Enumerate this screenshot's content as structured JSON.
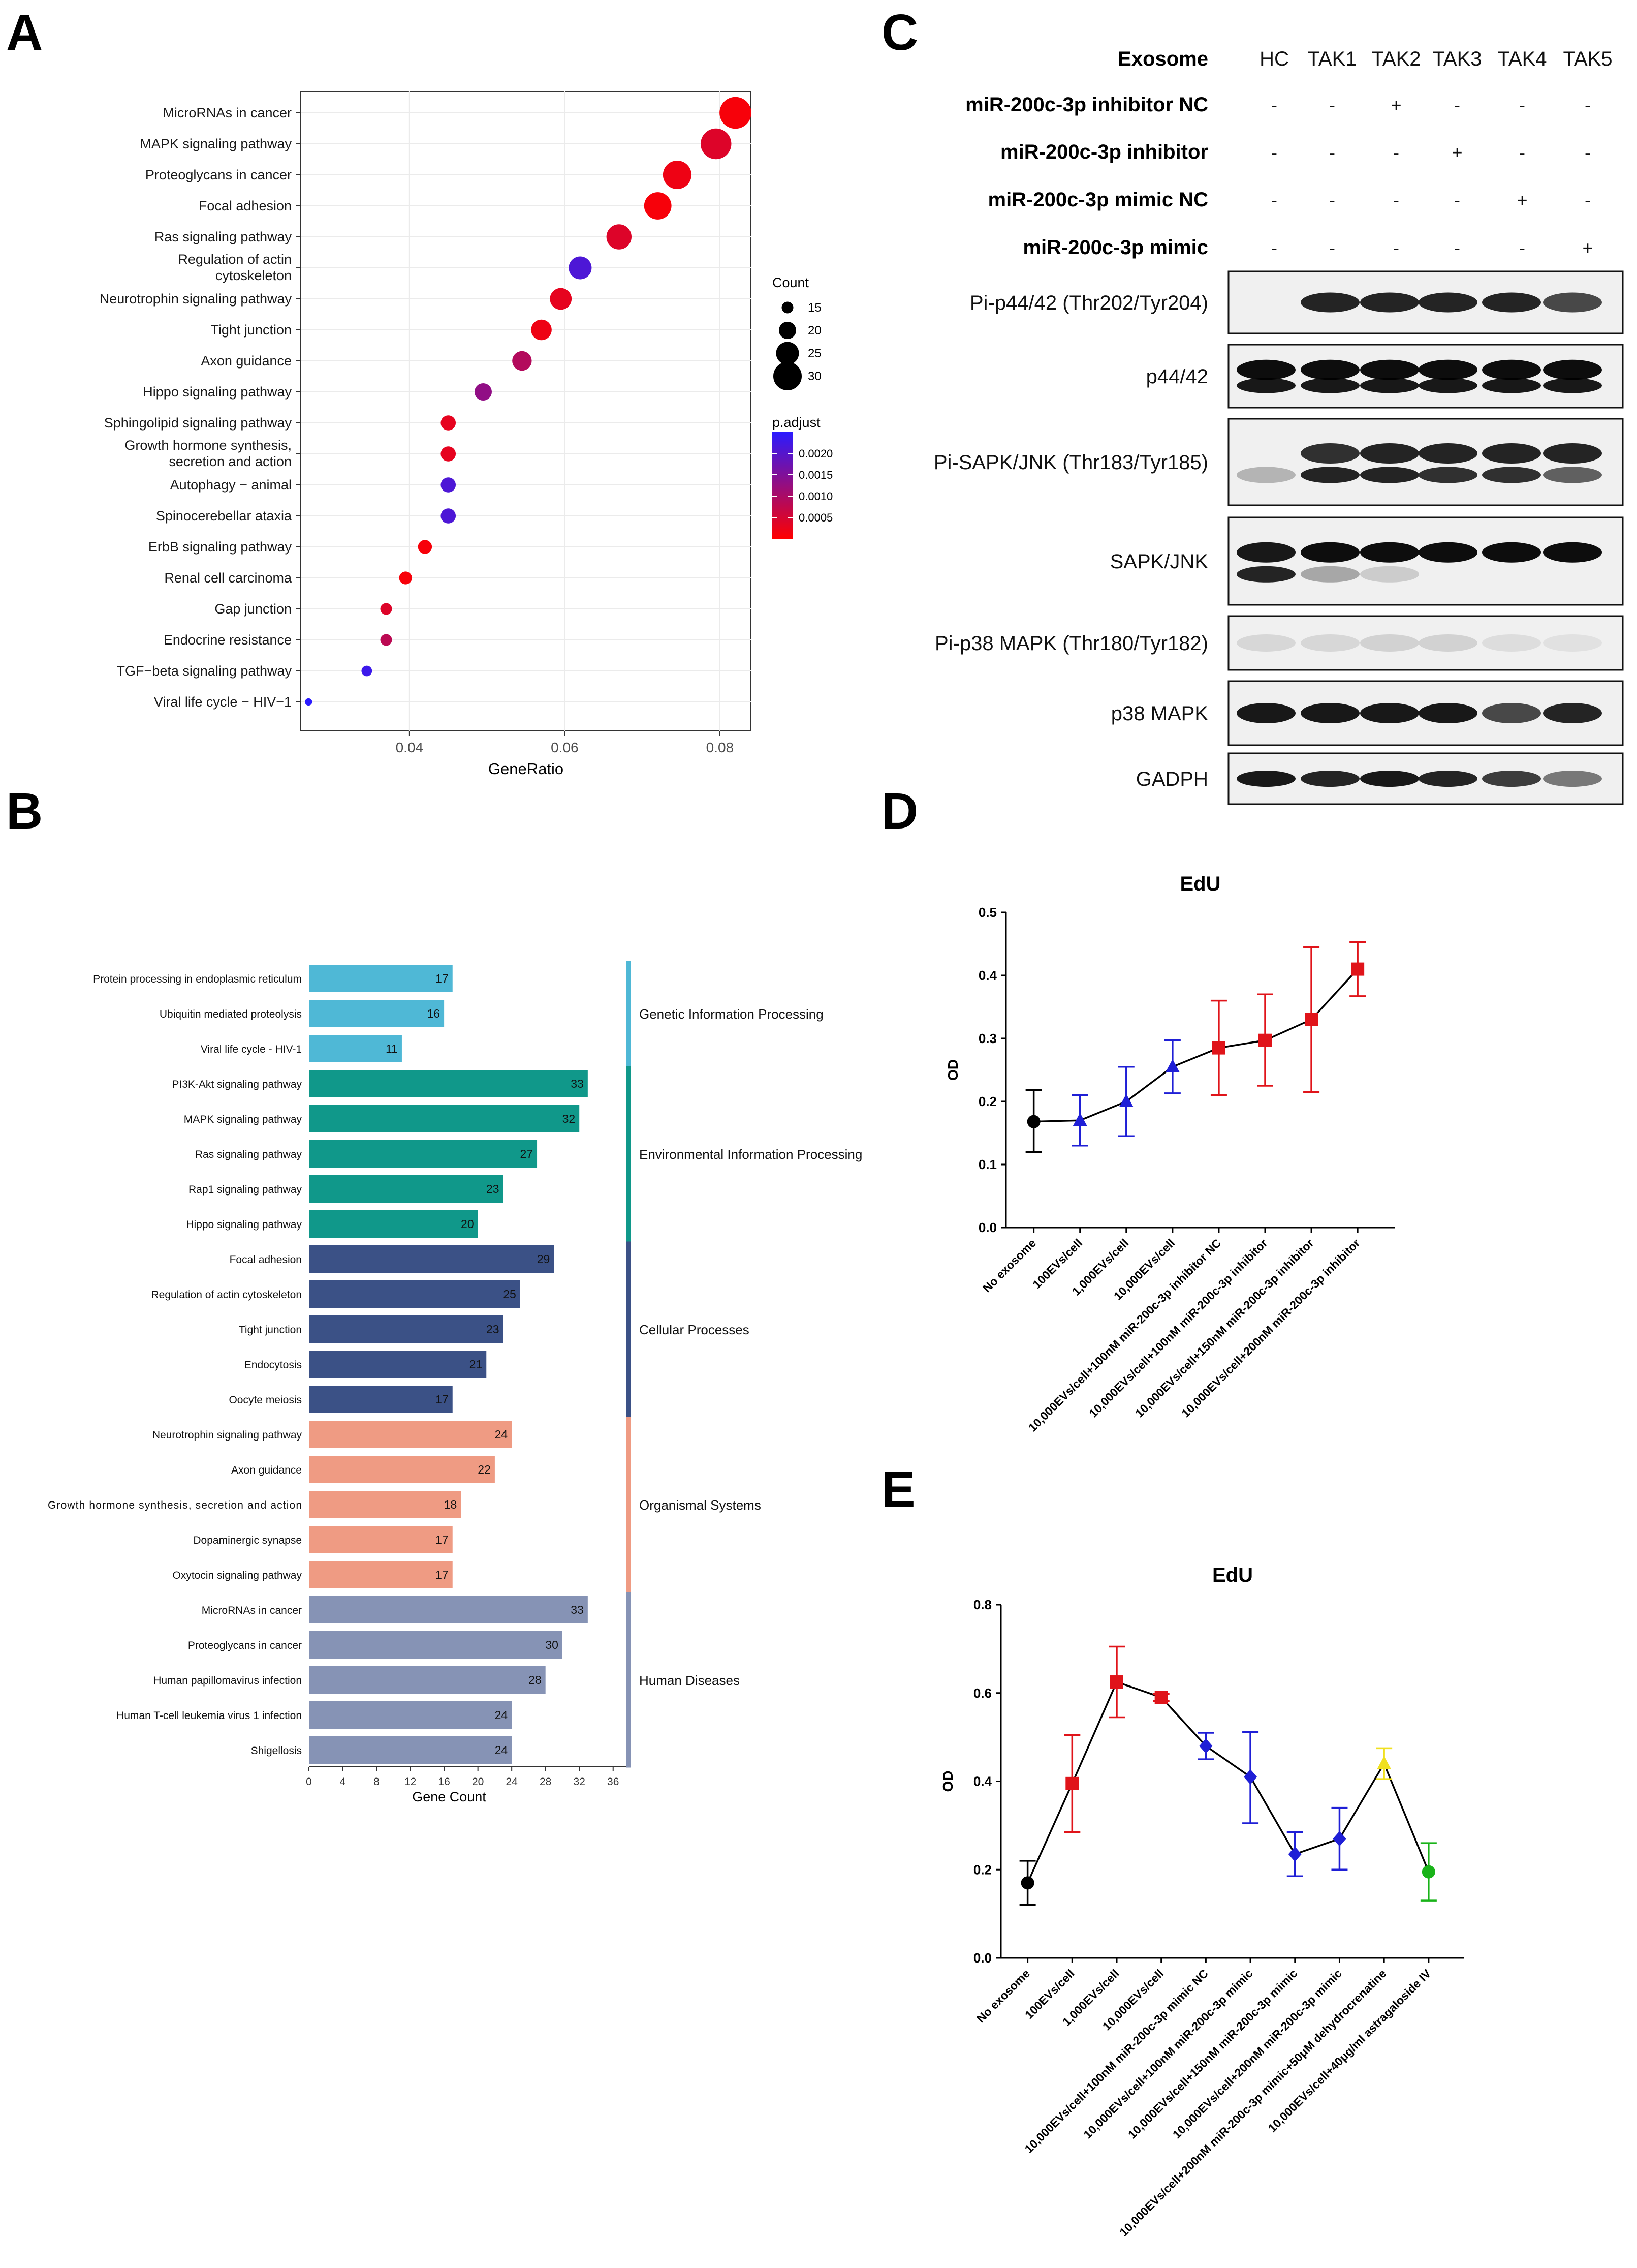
{
  "panel_labels": [
    "A",
    "B",
    "C",
    "D",
    "E"
  ],
  "colors": {
    "padj_low": "#ff0000",
    "padj_high": "#2b1bff",
    "genetic": "#4fb8d6",
    "environmental": "#10988a",
    "cellular": "#3b5186",
    "organismal": "#ef9b83",
    "human": "#8693b5",
    "black": "#000000",
    "blue": "#1f1fd6",
    "red": "#e0141a",
    "yellow": "#f0e020",
    "green": "#19b319"
  },
  "chart_data": [
    {
      "panel": "A",
      "type": "scatter",
      "title": "",
      "xlabel": "GeneRatio",
      "ylabel": "",
      "xlim": [
        0.026,
        0.084
      ],
      "xticks": [
        0.04,
        0.06,
        0.08
      ],
      "xtick_labels": [
        "0.04",
        "0.06",
        "0.08"
      ],
      "categories": [
        "MicroRNAs in cancer",
        "MAPK signaling pathway",
        "Proteoglycans in cancer",
        "Focal adhesion",
        "Ras signaling pathway",
        "Regulation of actin|cytoskeleton",
        "Neurotrophin signaling pathway",
        "Tight junction",
        "Axon guidance",
        "Hippo signaling pathway",
        "Sphingolipid signaling pathway",
        "Growth hormone synthesis,|secretion and action",
        "Autophagy − animal",
        "Spinocerebellar ataxia",
        "ErbB signaling pathway",
        "Renal cell carcinoma",
        "Gap junction",
        "Endocrine resistance",
        "TGF−beta signaling pathway",
        "Viral life cycle − HIV−1"
      ],
      "x": [
        0.082,
        0.0795,
        0.0745,
        0.072,
        0.067,
        0.062,
        0.0595,
        0.057,
        0.0545,
        0.0495,
        0.045,
        0.045,
        0.045,
        0.045,
        0.042,
        0.0395,
        0.037,
        0.037,
        0.0345,
        0.027
      ],
      "count": [
        33,
        32,
        30,
        29,
        27,
        25,
        24,
        23,
        22,
        20,
        18,
        18,
        18,
        18,
        17,
        16,
        15,
        15,
        14,
        11
      ],
      "p_adjust": [
        0.0001,
        0.0004,
        0.0002,
        0.0001,
        0.0004,
        0.0021,
        0.0003,
        0.0002,
        0.0009,
        0.0013,
        0.0003,
        0.0003,
        0.0021,
        0.0021,
        0.0001,
        0.0001,
        0.0004,
        0.0008,
        0.0023,
        0.0026
      ],
      "legend": {
        "size_title": "Count",
        "size_values": [
          15,
          20,
          25,
          30
        ],
        "size_labels": [
          "15",
          "20",
          "25",
          "30"
        ],
        "color_title": "p.adjust",
        "color_range": [
          0.0,
          0.0025
        ],
        "color_ticks": [
          "0.0020",
          "0.0015",
          "0.0010",
          "0.0005"
        ],
        "color_tick_values": [
          0.002,
          0.0015,
          0.001,
          0.0005
        ]
      }
    },
    {
      "panel": "B",
      "type": "bar",
      "orientation": "horizontal",
      "xlabel": "Gene Count",
      "xlim": [
        0,
        38
      ],
      "xticks": [
        0,
        4,
        8,
        12,
        16,
        20,
        24,
        28,
        32,
        36
      ],
      "categories": [
        "Protein processing in endoplasmic reticulum",
        "Ubiquitin mediated proteolysis",
        "Viral life cycle - HIV-1",
        "PI3K-Akt signaling pathway",
        "MAPK signaling pathway",
        "Ras signaling pathway",
        "Rap1 signaling pathway",
        "Hippo signaling pathway",
        "Focal adhesion",
        "Regulation of actin cytoskeleton",
        "Tight junction",
        "Endocytosis",
        "Oocyte meiosis",
        "Neurotrophin signaling pathway",
        "Axon guidance",
        "Growth hormone synthesis, secretion and action",
        "Dopaminergic synapse",
        "Oxytocin signaling pathway",
        "MicroRNAs in cancer",
        "Proteoglycans in cancer",
        "Human papillomavirus infection",
        "Human T-cell leukemia virus 1 infection",
        "Shigellosis"
      ],
      "values": [
        17,
        16,
        11,
        33,
        32,
        27,
        23,
        20,
        29,
        25,
        23,
        21,
        17,
        24,
        22,
        18,
        17,
        17,
        33,
        30,
        28,
        24,
        24
      ],
      "value_labels": [
        "17",
        "16",
        "11",
        "33",
        "32",
        "27",
        "23",
        "20",
        "29",
        "25",
        "23",
        "21",
        "17",
        "24",
        "22",
        "18",
        "17",
        "17",
        "33",
        "30",
        "28",
        "24",
        "24"
      ],
      "groups": [
        {
          "name": "Genetic Information Processing",
          "start": 0,
          "end": 2,
          "color_key": "genetic"
        },
        {
          "name": "Environmental Information Processing",
          "start": 3,
          "end": 7,
          "color_key": "environmental"
        },
        {
          "name": "Cellular Processes",
          "start": 8,
          "end": 12,
          "color_key": "cellular"
        },
        {
          "name": "Organismal Systems",
          "start": 13,
          "end": 17,
          "color_key": "organismal"
        },
        {
          "name": "Human Diseases",
          "start": 18,
          "end": 22,
          "color_key": "human"
        }
      ]
    },
    {
      "panel": "D",
      "type": "line",
      "title": "EdU",
      "ylabel": "OD",
      "ylim": [
        0,
        0.5
      ],
      "yticks": [
        0.0,
        0.1,
        0.2,
        0.3,
        0.4,
        0.5
      ],
      "ytick_labels": [
        "0.0",
        "0.1",
        "0.2",
        "0.3",
        "0.4",
        "0.5"
      ],
      "categories": [
        "No exosome",
        "100EVs/cell",
        "1,000EVs/cell",
        "10,000EVs/cell",
        "10,000EVs/cell+100nM miR-200c-3p inhibitor NC",
        "10,000EVs/cell+100nM miR-200c-3p inhibitor",
        "10,000EVs/cell+150nM miR-200c-3p inhibitor",
        "10,000EVs/cell+200nM miR-200c-3p inhibitor"
      ],
      "values": [
        0.168,
        0.17,
        0.2,
        0.255,
        0.285,
        0.297,
        0.33,
        0.41
      ],
      "error_low": [
        0.12,
        0.13,
        0.145,
        0.213,
        0.21,
        0.225,
        0.215,
        0.367
      ],
      "error_high": [
        0.218,
        0.21,
        0.255,
        0.297,
        0.36,
        0.37,
        0.445,
        0.453
      ],
      "colors": [
        "black",
        "blue",
        "blue",
        "blue",
        "red",
        "red",
        "red",
        "red"
      ],
      "markers": [
        "circle",
        "triangle",
        "triangle",
        "triangle",
        "square",
        "square",
        "square",
        "square"
      ]
    },
    {
      "panel": "E",
      "type": "line",
      "title": "EdU",
      "ylabel": "OD",
      "ylim": [
        0,
        0.8
      ],
      "yticks": [
        0.0,
        0.2,
        0.4,
        0.6,
        0.8
      ],
      "ytick_labels": [
        "0.0",
        "0.2",
        "0.4",
        "0.6",
        "0.8"
      ],
      "categories": [
        "No exosome",
        "100EVs/cell",
        "1,000EVs/cell",
        "10,000EVs/cell",
        "10,000EVs/cell+100nM miR-200c-3p mimic NC",
        "10,000EVs/cell+100nM miR-200c-3p mimic",
        "10,000EVs/cell+150nM miR-200c-3p mimic",
        "10,000EVs/cell+200nM miR-200c-3p mimic",
        "10,000EVs/cell+200nM miR-200c-3p mimic+50μM dehydrocrenatine",
        "10,000EVs/cell+40μg/ml astragaloside IV"
      ],
      "values": [
        0.17,
        0.395,
        0.625,
        0.59,
        0.48,
        0.41,
        0.235,
        0.27,
        0.44,
        0.195
      ],
      "error_low": [
        0.12,
        0.285,
        0.545,
        0.582,
        0.45,
        0.305,
        0.185,
        0.2,
        0.405,
        0.13
      ],
      "error_high": [
        0.22,
        0.505,
        0.705,
        0.598,
        0.51,
        0.512,
        0.285,
        0.34,
        0.475,
        0.26
      ],
      "colors": [
        "black",
        "red",
        "red",
        "red",
        "blue",
        "blue",
        "blue",
        "blue",
        "yellow",
        "green"
      ],
      "markers": [
        "circle",
        "square",
        "square",
        "square",
        "diamond",
        "diamond",
        "diamond",
        "diamond",
        "triangle",
        "circle"
      ]
    }
  ],
  "panel_c": {
    "treatment_rows": [
      {
        "label": "Exosome",
        "cells": [
          "HC",
          "TAK1",
          "TAK2",
          "TAK3",
          "TAK4",
          "TAK5"
        ]
      },
      {
        "label": "miR-200c-3p inhibitor NC",
        "cells": [
          "-",
          "-",
          "+",
          "-",
          "-",
          "-"
        ]
      },
      {
        "label": "miR-200c-3p inhibitor",
        "cells": [
          "-",
          "-",
          "-",
          "+",
          "-",
          "-"
        ]
      },
      {
        "label": "miR-200c-3p mimic NC",
        "cells": [
          "-",
          "-",
          "-",
          "-",
          "+",
          "-"
        ]
      },
      {
        "label": "miR-200c-3p mimic",
        "cells": [
          "-",
          "-",
          "-",
          "-",
          "-",
          "+"
        ]
      }
    ],
    "blots": [
      {
        "label": "Pi-p44/42 (Thr202/Tyr204)",
        "band_intensity": [
          0.0,
          0.85,
          0.85,
          0.85,
          0.85,
          0.7
        ],
        "second_band": [
          0,
          0,
          0,
          0,
          0,
          0
        ]
      },
      {
        "label": "p44/42",
        "band_intensity": [
          0.95,
          0.95,
          0.95,
          0.95,
          0.95,
          0.95
        ],
        "second_band": [
          0.9,
          0.9,
          0.9,
          0.9,
          0.9,
          0.9
        ]
      },
      {
        "label": "Pi-SAPK/JNK (Thr183/Tyr185)",
        "band_intensity": [
          0.0,
          0.8,
          0.85,
          0.85,
          0.85,
          0.85
        ],
        "second_band": [
          0.25,
          0.85,
          0.85,
          0.8,
          0.8,
          0.6
        ]
      },
      {
        "label": "SAPK/JNK",
        "band_intensity": [
          0.9,
          0.95,
          0.95,
          0.95,
          0.95,
          0.95
        ],
        "second_band": [
          0.85,
          0.3,
          0.15,
          0.0,
          0.0,
          0.0
        ]
      },
      {
        "label": "Pi-p38 MAPK (Thr180/Tyr182)",
        "band_intensity": [
          0.1,
          0.1,
          0.12,
          0.12,
          0.08,
          0.06
        ],
        "second_band": [
          0,
          0,
          0,
          0,
          0,
          0
        ]
      },
      {
        "label": "p38 MAPK",
        "band_intensity": [
          0.9,
          0.9,
          0.9,
          0.9,
          0.7,
          0.85
        ],
        "second_band": [
          0,
          0,
          0,
          0,
          0,
          0
        ]
      },
      {
        "label": "GADPH",
        "band_intensity": [
          0.9,
          0.85,
          0.9,
          0.85,
          0.75,
          0.5
        ],
        "second_band": [
          0,
          0,
          0,
          0,
          0,
          0
        ]
      }
    ]
  }
}
